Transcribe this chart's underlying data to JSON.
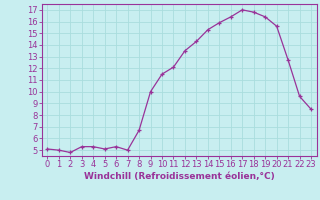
{
  "x": [
    0,
    1,
    2,
    3,
    4,
    5,
    6,
    7,
    8,
    9,
    10,
    11,
    12,
    13,
    14,
    15,
    16,
    17,
    18,
    19,
    20,
    21,
    22,
    23
  ],
  "y": [
    5.1,
    5.0,
    4.8,
    5.3,
    5.3,
    5.1,
    5.3,
    5.0,
    6.7,
    10.0,
    11.5,
    12.1,
    13.5,
    14.3,
    15.3,
    15.9,
    16.4,
    17.0,
    16.8,
    16.4,
    15.6,
    12.7,
    9.6,
    8.5
  ],
  "line_color": "#993399",
  "marker": "+",
  "marker_size": 3,
  "bg_color": "#c8eef0",
  "grid_color": "#aadddd",
  "axis_color": "#993399",
  "tick_color": "#993399",
  "label_color": "#993399",
  "xlim": [
    -0.5,
    23.5
  ],
  "ylim": [
    4.5,
    17.5
  ],
  "yticks": [
    5,
    6,
    7,
    8,
    9,
    10,
    11,
    12,
    13,
    14,
    15,
    16,
    17
  ],
  "xticks": [
    0,
    1,
    2,
    3,
    4,
    5,
    6,
    7,
    8,
    9,
    10,
    11,
    12,
    13,
    14,
    15,
    16,
    17,
    18,
    19,
    20,
    21,
    22,
    23
  ],
  "xlabel": "Windchill (Refroidissement éolien,°C)",
  "tick_fontsize": 6,
  "xlabel_fontsize": 6.5
}
